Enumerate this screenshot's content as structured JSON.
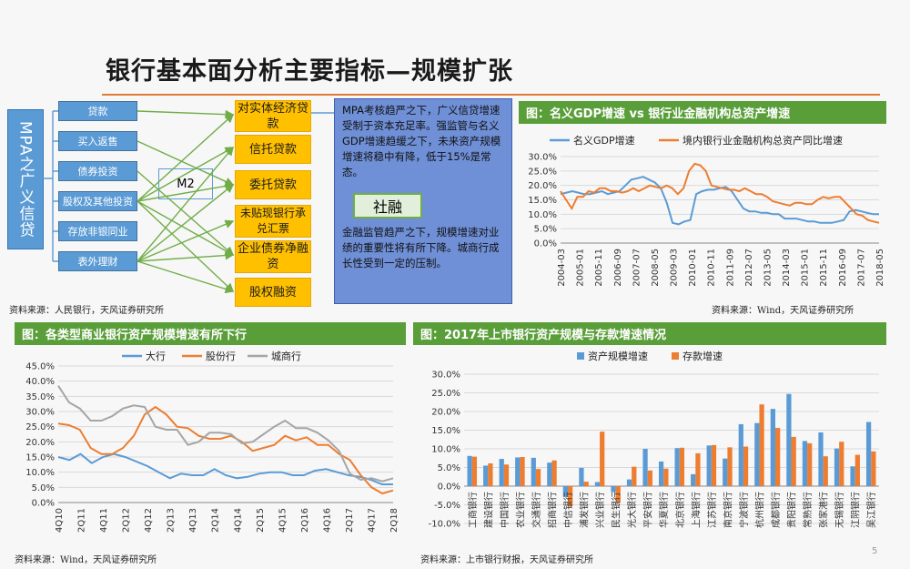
{
  "title": "银行基本面分析主要指标—规模扩张",
  "page_number": "5",
  "diagram": {
    "side_label": "MPA之广义信贷",
    "sources": [
      "贷款",
      "买入返售",
      "债券投资",
      "股权及其他投资",
      "存放非银同业",
      "表外理财"
    ],
    "hub": "M2",
    "destinations": [
      "对实体经济贷款",
      "信托贷款",
      "委托贷款",
      "未贴现银行承兑汇票",
      "企业债券净融资",
      "股权融资"
    ],
    "note_top": "MPA考核趋严之下，广义信贷增速受制于资本充足率。强监管与名义GDP增速趋缓之下，未来资产规模增速将稳中有降，低于15%是常态。",
    "note_bottom": "金融监管趋严之下，规模增速对业绩的重要性将有所下降。城商行成长性受到一定的压制。",
    "total_label": "社融",
    "source_note": "资料来源：人民银行，天风证券研究所"
  },
  "chart_data": [
    {
      "type": "line",
      "id": "gdp",
      "title": "图：名义GDP增速 vs 银行业金融机构总资产增速",
      "legend": [
        "名义GDP增速",
        "境内银行业金融机构总资产同比增速"
      ],
      "colors": [
        "#5b9bd5",
        "#ed7d31"
      ],
      "x_ticks": [
        "2004-03",
        "2005-01",
        "2005-11",
        "2006-09",
        "2007-07",
        "2008-05",
        "2009-03",
        "2010-01",
        "2010-11",
        "2011-09",
        "2012-07",
        "2013-05",
        "2014-03",
        "2015-01",
        "2015-11",
        "2016-09",
        "2017-07",
        "2018-05"
      ],
      "ylim": [
        0,
        30
      ],
      "y_ticks": [
        "0.0%",
        "5.0%",
        "10.0%",
        "15.0%",
        "20.0%",
        "25.0%",
        "30.0%"
      ],
      "series": [
        {
          "name": "名义GDP增速",
          "values": [
            17,
            17.5,
            18,
            17.5,
            17,
            17,
            17.5,
            18,
            17,
            17.5,
            18,
            20,
            22,
            22.5,
            23,
            22,
            21,
            19,
            14,
            7,
            6.5,
            7.5,
            8,
            17,
            18,
            18.5,
            18.5,
            19,
            19.5,
            18,
            15,
            12,
            11,
            11,
            10.5,
            10.5,
            10,
            10,
            8.5,
            8.5,
            8.5,
            8,
            7.5,
            7.5,
            7,
            7,
            7,
            7.5,
            8,
            11,
            11.5,
            11,
            10.5,
            10,
            10
          ]
        },
        {
          "name": "境内银行业金融机构总资产同比增速",
          "values": [
            18,
            15,
            12,
            16,
            16,
            18,
            17.5,
            19,
            19,
            18,
            18,
            17.5,
            18,
            19,
            18,
            19,
            20,
            19.5,
            19,
            20,
            19,
            17,
            19,
            25,
            27.5,
            27,
            25,
            20,
            19.5,
            19,
            18.5,
            18.5,
            18,
            19,
            18,
            17,
            17,
            16,
            14.5,
            14,
            13.5,
            13,
            14,
            14,
            13.5,
            13.5,
            15,
            16,
            15.5,
            16,
            16,
            14,
            12,
            10,
            9.5,
            8,
            7.5,
            7
          ]
        }
      ],
      "source_note": "资料来源：Wind，天风证券研究所"
    },
    {
      "type": "line",
      "id": "banks",
      "title": "图：各类型商业银行资产规模增速有所下行",
      "legend": [
        "大行",
        "股份行",
        "城商行"
      ],
      "colors": [
        "#5b9bd5",
        "#ed7d31",
        "#a5a5a5"
      ],
      "x_ticks": [
        "4Q10",
        "2Q11",
        "4Q11",
        "2Q12",
        "4Q12",
        "2Q13",
        "4Q13",
        "2Q14",
        "4Q14",
        "2Q15",
        "4Q15",
        "2Q16",
        "4Q16",
        "2Q17",
        "4Q17",
        "2Q18"
      ],
      "ylim": [
        0,
        45
      ],
      "y_ticks": [
        "0.0%",
        "5.0%",
        "10.0%",
        "15.0%",
        "20.0%",
        "25.0%",
        "30.0%",
        "35.0%",
        "40.0%",
        "45.0%"
      ],
      "series": [
        {
          "name": "大行",
          "values": [
            15,
            14,
            16,
            13,
            15,
            16,
            15,
            13.5,
            12,
            10,
            8,
            9.5,
            9,
            9,
            11,
            9,
            8,
            8.5,
            9.5,
            10,
            10,
            9,
            9,
            10.5,
            11,
            10,
            9,
            8.5,
            7.5,
            6,
            6
          ]
        },
        {
          "name": "股份行",
          "values": [
            26,
            25.5,
            24,
            18,
            16,
            16,
            18,
            22,
            29,
            31.5,
            29,
            25,
            24.5,
            22,
            21,
            21,
            22,
            20,
            17,
            18,
            19,
            22,
            20.5,
            21.5,
            19,
            19,
            16,
            14,
            9,
            5,
            3,
            4
          ]
        },
        {
          "name": "城商行",
          "values": [
            38.5,
            33,
            31,
            27,
            27,
            28.5,
            31,
            32,
            31.5,
            25,
            24,
            24,
            19,
            20,
            23,
            23,
            22.5,
            19.5,
            20,
            22.5,
            25,
            27,
            24.5,
            24.5,
            23,
            20.5,
            17,
            9.5,
            7.5,
            8,
            7,
            8
          ]
        }
      ],
      "source_note": "资料来源：Wind，天风证券研究所"
    },
    {
      "type": "bar",
      "id": "listed",
      "title": "图：2017年上市银行资产规模与存款增速情况",
      "legend": [
        "资产规模增速",
        "存款增速"
      ],
      "colors": [
        "#5b9bd5",
        "#ed7d31"
      ],
      "categories": [
        "工商银行",
        "建设银行",
        "中国银行",
        "农业银行",
        "交通银行",
        "招商银行",
        "中信银行",
        "浦发银行",
        "兴业银行",
        "民生银行",
        "光大银行",
        "平安银行",
        "华夏银行",
        "北京银行",
        "上海银行",
        "江苏银行",
        "南京银行",
        "宁波银行",
        "杭州银行",
        "成都银行",
        "贵阳银行",
        "常熟银行",
        "张家港行",
        "无锡银行",
        "江阴银行",
        "吴江银行"
      ],
      "ylim": [
        -10,
        30
      ],
      "y_ticks": [
        "-10.0%",
        "-5.0%",
        "0.0%",
        "5.0%",
        "10.0%",
        "15.0%",
        "20.0%",
        "25.0%",
        "30.0%"
      ],
      "series": [
        {
          "name": "资产规模增速",
          "values": [
            8.1,
            5.5,
            7.3,
            7.7,
            7.6,
            6.3,
            -2.9,
            4.9,
            1.1,
            -1.6,
            1.8,
            10.0,
            6.6,
            10.2,
            3.2,
            10.9,
            7.4,
            16.6,
            16.9,
            20.7,
            24.7,
            12.1,
            14.4,
            10.1,
            5.3,
            17.2
          ]
        },
        {
          "name": "存款增速",
          "values": [
            7.9,
            6.1,
            5.8,
            7.8,
            4.6,
            6.9,
            -5.4,
            1.2,
            14.6,
            -4.5,
            5.2,
            4.2,
            4.7,
            10.3,
            8.8,
            11.0,
            10.4,
            10.6,
            21.9,
            15.6,
            13.2,
            11.5,
            8.0,
            11.9,
            8.4,
            9.3
          ]
        }
      ],
      "source_note": "资料来源：上市银行财报，天风证券研究所"
    }
  ]
}
